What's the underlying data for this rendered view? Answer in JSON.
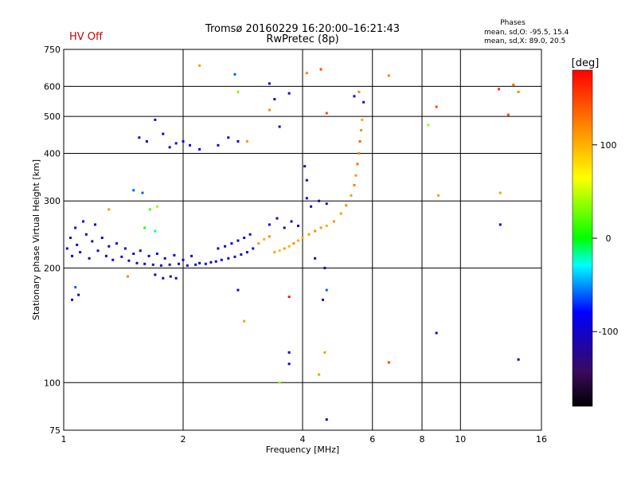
{
  "header": {
    "status": "HV Off",
    "title_line1": "Tromsø 20160229 16:20:00–16:21:43",
    "title_line2": "RwPretec (8p)",
    "phase_title": "Phases",
    "phase_line1": "mean, sd,O: -95.5, 15.4",
    "phase_line2": "mean, sd,X: 89.0, 20.5"
  },
  "colors": {
    "status_text": "#d00000",
    "grid": "#000000"
  },
  "chart_data": {
    "type": "scatter",
    "xlabel": "Frequency [MHz]",
    "ylabel": "Stationary phase Virtual Height [km]",
    "x_scale": "log",
    "y_scale": "log",
    "xlim": [
      1,
      16
    ],
    "ylim": [
      75,
      750
    ],
    "x_ticks": [
      1,
      2,
      4,
      6,
      8,
      10,
      16
    ],
    "x_tick_labels": [
      "1",
      "2",
      "4",
      "6",
      "8",
      "10",
      "16"
    ],
    "y_ticks": [
      75,
      100,
      200,
      300,
      400,
      500,
      600,
      750
    ],
    "y_tick_labels": [
      "75",
      "100",
      "200",
      "300",
      "400",
      "500",
      "600",
      "750"
    ],
    "grid": true,
    "colorbar": {
      "label": "[deg]",
      "min": -180,
      "max": 180,
      "ticks": [
        100,
        0,
        -100
      ],
      "tick_labels": [
        "100",
        "0",
        "-100"
      ]
    },
    "points": [
      {
        "x": 1.02,
        "y": 225,
        "phase": -100
      },
      {
        "x": 1.04,
        "y": 240,
        "phase": -110
      },
      {
        "x": 1.05,
        "y": 215,
        "phase": -95
      },
      {
        "x": 1.07,
        "y": 255,
        "phase": -105
      },
      {
        "x": 1.08,
        "y": 230,
        "phase": -90
      },
      {
        "x": 1.1,
        "y": 220,
        "phase": -100
      },
      {
        "x": 1.12,
        "y": 265,
        "phase": -100
      },
      {
        "x": 1.14,
        "y": 245,
        "phase": -95
      },
      {
        "x": 1.16,
        "y": 212,
        "phase": -100
      },
      {
        "x": 1.18,
        "y": 235,
        "phase": -110
      },
      {
        "x": 1.2,
        "y": 260,
        "phase": -100
      },
      {
        "x": 1.22,
        "y": 222,
        "phase": -90
      },
      {
        "x": 1.25,
        "y": 240,
        "phase": -100
      },
      {
        "x": 1.28,
        "y": 215,
        "phase": -95
      },
      {
        "x": 1.3,
        "y": 228,
        "phase": -100
      },
      {
        "x": 1.33,
        "y": 210,
        "phase": -100
      },
      {
        "x": 1.36,
        "y": 232,
        "phase": -85
      },
      {
        "x": 1.4,
        "y": 214,
        "phase": -100
      },
      {
        "x": 1.43,
        "y": 225,
        "phase": -95
      },
      {
        "x": 1.46,
        "y": 209,
        "phase": -100
      },
      {
        "x": 1.5,
        "y": 218,
        "phase": -100
      },
      {
        "x": 1.53,
        "y": 206,
        "phase": -110
      },
      {
        "x": 1.56,
        "y": 222,
        "phase": -100
      },
      {
        "x": 1.6,
        "y": 205,
        "phase": -95
      },
      {
        "x": 1.64,
        "y": 215,
        "phase": -100
      },
      {
        "x": 1.68,
        "y": 204,
        "phase": -100
      },
      {
        "x": 1.72,
        "y": 218,
        "phase": -90
      },
      {
        "x": 1.76,
        "y": 203,
        "phase": -100
      },
      {
        "x": 1.8,
        "y": 212,
        "phase": -100
      },
      {
        "x": 1.85,
        "y": 204,
        "phase": -105
      },
      {
        "x": 1.9,
        "y": 216,
        "phase": -100
      },
      {
        "x": 1.95,
        "y": 205,
        "phase": -95
      },
      {
        "x": 2.0,
        "y": 210,
        "phase": -100
      },
      {
        "x": 2.05,
        "y": 203,
        "phase": -100
      },
      {
        "x": 2.1,
        "y": 215,
        "phase": -90
      },
      {
        "x": 2.15,
        "y": 204,
        "phase": -100
      },
      {
        "x": 2.2,
        "y": 206,
        "phase": -100
      },
      {
        "x": 2.28,
        "y": 205,
        "phase": -95
      },
      {
        "x": 2.35,
        "y": 207,
        "phase": -100
      },
      {
        "x": 2.42,
        "y": 208,
        "phase": -100
      },
      {
        "x": 2.5,
        "y": 210,
        "phase": -90
      },
      {
        "x": 2.6,
        "y": 212,
        "phase": -100
      },
      {
        "x": 2.7,
        "y": 214,
        "phase": -95
      },
      {
        "x": 2.8,
        "y": 217,
        "phase": -100
      },
      {
        "x": 2.9,
        "y": 220,
        "phase": -100
      },
      {
        "x": 3.0,
        "y": 225,
        "phase": -85
      },
      {
        "x": 2.45,
        "y": 225,
        "phase": -100
      },
      {
        "x": 2.55,
        "y": 228,
        "phase": -95
      },
      {
        "x": 2.65,
        "y": 232,
        "phase": -100
      },
      {
        "x": 2.75,
        "y": 236,
        "phase": -100
      },
      {
        "x": 2.85,
        "y": 240,
        "phase": -95
      },
      {
        "x": 2.95,
        "y": 245,
        "phase": -100
      },
      {
        "x": 3.1,
        "y": 232,
        "phase": 110
      },
      {
        "x": 3.2,
        "y": 238,
        "phase": 100
      },
      {
        "x": 3.3,
        "y": 242,
        "phase": 120
      },
      {
        "x": 3.4,
        "y": 220,
        "phase": 105
      },
      {
        "x": 3.5,
        "y": 222,
        "phase": 95
      },
      {
        "x": 3.6,
        "y": 225,
        "phase": 110
      },
      {
        "x": 3.7,
        "y": 228,
        "phase": 100
      },
      {
        "x": 3.8,
        "y": 232,
        "phase": 115
      },
      {
        "x": 3.9,
        "y": 236,
        "phase": 105
      },
      {
        "x": 4.0,
        "y": 240,
        "phase": 100
      },
      {
        "x": 4.15,
        "y": 245,
        "phase": 110
      },
      {
        "x": 4.3,
        "y": 250,
        "phase": 120
      },
      {
        "x": 4.45,
        "y": 255,
        "phase": 110
      },
      {
        "x": 4.6,
        "y": 258,
        "phase": 100
      },
      {
        "x": 4.8,
        "y": 265,
        "phase": 115
      },
      {
        "x": 5.0,
        "y": 278,
        "phase": 110
      },
      {
        "x": 5.15,
        "y": 292,
        "phase": 120
      },
      {
        "x": 5.3,
        "y": 310,
        "phase": 110
      },
      {
        "x": 5.4,
        "y": 330,
        "phase": 125
      },
      {
        "x": 5.45,
        "y": 350,
        "phase": 115
      },
      {
        "x": 5.5,
        "y": 375,
        "phase": 130
      },
      {
        "x": 5.55,
        "y": 400,
        "phase": 120
      },
      {
        "x": 5.58,
        "y": 430,
        "phase": 135
      },
      {
        "x": 5.62,
        "y": 460,
        "phase": 115
      },
      {
        "x": 5.65,
        "y": 490,
        "phase": 105
      },
      {
        "x": 3.3,
        "y": 260,
        "phase": -100
      },
      {
        "x": 3.45,
        "y": 270,
        "phase": -95
      },
      {
        "x": 3.6,
        "y": 255,
        "phase": -100
      },
      {
        "x": 3.75,
        "y": 265,
        "phase": -100
      },
      {
        "x": 3.9,
        "y": 258,
        "phase": -95
      },
      {
        "x": 4.1,
        "y": 305,
        "phase": -100
      },
      {
        "x": 4.2,
        "y": 290,
        "phase": -100
      },
      {
        "x": 4.4,
        "y": 300,
        "phase": -95
      },
      {
        "x": 4.6,
        "y": 295,
        "phase": -100
      },
      {
        "x": 4.05,
        "y": 370,
        "phase": -100
      },
      {
        "x": 4.1,
        "y": 340,
        "phase": -100
      },
      {
        "x": 1.55,
        "y": 440,
        "phase": -100
      },
      {
        "x": 1.62,
        "y": 430,
        "phase": -100
      },
      {
        "x": 1.7,
        "y": 490,
        "phase": -110
      },
      {
        "x": 1.78,
        "y": 450,
        "phase": -100
      },
      {
        "x": 1.85,
        "y": 415,
        "phase": -95
      },
      {
        "x": 1.92,
        "y": 425,
        "phase": -100
      },
      {
        "x": 2.0,
        "y": 430,
        "phase": -100
      },
      {
        "x": 2.08,
        "y": 420,
        "phase": -95
      },
      {
        "x": 2.2,
        "y": 410,
        "phase": -100
      },
      {
        "x": 2.45,
        "y": 420,
        "phase": -100
      },
      {
        "x": 2.6,
        "y": 440,
        "phase": -95
      },
      {
        "x": 2.75,
        "y": 430,
        "phase": -100
      },
      {
        "x": 2.9,
        "y": 430,
        "phase": 110
      },
      {
        "x": 1.5,
        "y": 320,
        "phase": -60
      },
      {
        "x": 1.58,
        "y": 315,
        "phase": -60
      },
      {
        "x": 1.65,
        "y": 285,
        "phase": 20
      },
      {
        "x": 1.72,
        "y": 290,
        "phase": 40
      },
      {
        "x": 1.6,
        "y": 255,
        "phase": 10
      },
      {
        "x": 1.7,
        "y": 250,
        "phase": -20
      },
      {
        "x": 1.3,
        "y": 285,
        "phase": 110
      },
      {
        "x": 1.05,
        "y": 165,
        "phase": -80
      },
      {
        "x": 1.09,
        "y": 170,
        "phase": -100
      },
      {
        "x": 1.07,
        "y": 178,
        "phase": -60
      },
      {
        "x": 1.45,
        "y": 190,
        "phase": 120
      },
      {
        "x": 1.7,
        "y": 192,
        "phase": -100
      },
      {
        "x": 1.78,
        "y": 188,
        "phase": -100
      },
      {
        "x": 1.86,
        "y": 190,
        "phase": -100
      },
      {
        "x": 1.92,
        "y": 188,
        "phase": -100
      },
      {
        "x": 2.75,
        "y": 175,
        "phase": -100
      },
      {
        "x": 2.85,
        "y": 145,
        "phase": 110
      },
      {
        "x": 3.7,
        "y": 168,
        "phase": 170
      },
      {
        "x": 4.5,
        "y": 165,
        "phase": -100
      },
      {
        "x": 4.6,
        "y": 175,
        "phase": -60
      },
      {
        "x": 4.55,
        "y": 200,
        "phase": -100
      },
      {
        "x": 4.3,
        "y": 212,
        "phase": -100
      },
      {
        "x": 3.7,
        "y": 112,
        "phase": -100
      },
      {
        "x": 3.5,
        "y": 100,
        "phase": 40
      },
      {
        "x": 4.4,
        "y": 105,
        "phase": 110
      },
      {
        "x": 4.55,
        "y": 120,
        "phase": 110
      },
      {
        "x": 4.6,
        "y": 80,
        "phase": -100
      },
      {
        "x": 3.7,
        "y": 120,
        "phase": -100
      },
      {
        "x": 2.2,
        "y": 680,
        "phase": 110
      },
      {
        "x": 2.7,
        "y": 645,
        "phase": -60
      },
      {
        "x": 2.75,
        "y": 580,
        "phase": 30
      },
      {
        "x": 3.3,
        "y": 610,
        "phase": -100
      },
      {
        "x": 3.4,
        "y": 555,
        "phase": -100
      },
      {
        "x": 3.3,
        "y": 520,
        "phase": 120
      },
      {
        "x": 3.7,
        "y": 575,
        "phase": -100
      },
      {
        "x": 3.5,
        "y": 470,
        "phase": -100
      },
      {
        "x": 4.1,
        "y": 650,
        "phase": 120
      },
      {
        "x": 4.45,
        "y": 665,
        "phase": 150
      },
      {
        "x": 4.6,
        "y": 510,
        "phase": 150
      },
      {
        "x": 5.4,
        "y": 565,
        "phase": -100
      },
      {
        "x": 5.55,
        "y": 580,
        "phase": 120
      },
      {
        "x": 5.7,
        "y": 545,
        "phase": -100
      },
      {
        "x": 6.6,
        "y": 640,
        "phase": 120
      },
      {
        "x": 8.3,
        "y": 475,
        "phase": 40
      },
      {
        "x": 8.7,
        "y": 530,
        "phase": 150
      },
      {
        "x": 8.8,
        "y": 310,
        "phase": 110
      },
      {
        "x": 8.7,
        "y": 135,
        "phase": -100
      },
      {
        "x": 6.6,
        "y": 113,
        "phase": 150
      },
      {
        "x": 12.5,
        "y": 590,
        "phase": 160
      },
      {
        "x": 13.2,
        "y": 505,
        "phase": 150
      },
      {
        "x": 13.6,
        "y": 605,
        "phase": 140
      },
      {
        "x": 14.0,
        "y": 580,
        "phase": 120
      },
      {
        "x": 12.6,
        "y": 315,
        "phase": 110
      },
      {
        "x": 12.6,
        "y": 260,
        "phase": -100
      },
      {
        "x": 14.0,
        "y": 115,
        "phase": -100
      }
    ]
  }
}
